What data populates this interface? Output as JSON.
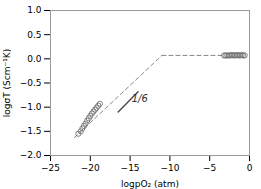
{
  "chart_data": {
    "type": "scatter",
    "xlabel": "logpO₂ (atm)",
    "ylabel": "logσT (Scm⁻¹K)",
    "xlim": [
      -25,
      0
    ],
    "ylim": [
      -2.0,
      1.0
    ],
    "xticks": [
      -25,
      -20,
      -15,
      -10,
      -5,
      0
    ],
    "yticks": [
      {
        "value": -2.0,
        "label": "−2.0"
      },
      {
        "value": -1.5,
        "label": "−1.5"
      },
      {
        "value": -1.0,
        "label": "−1.0"
      },
      {
        "value": -0.5,
        "label": "−0.5"
      },
      {
        "value": 0.0,
        "label": "0.0"
      },
      {
        "value": 0.5,
        "label": "0.5"
      },
      {
        "value": 1.0,
        "label": "1.0"
      }
    ],
    "series": [
      {
        "type": "line",
        "line_style": "dashed",
        "color": "#888888",
        "x": [
          -22.0,
          -11.0
        ],
        "values": [
          -1.63,
          0.07
        ]
      },
      {
        "type": "line",
        "line_style": "dashed",
        "color": "#888888",
        "x": [
          -11.0,
          -3.2
        ],
        "values": [
          0.07,
          0.07
        ]
      },
      {
        "type": "scatter",
        "marker": "circle",
        "color": "#666666",
        "x": [
          -21.5,
          -21.2,
          -21.0,
          -20.8,
          -20.6,
          -20.4,
          -20.2,
          -20.0,
          -19.8,
          -19.6,
          -19.4,
          -19.2,
          -19.0,
          -18.8
        ],
        "values": [
          -1.55,
          -1.5,
          -1.44,
          -1.39,
          -1.34,
          -1.28,
          -1.23,
          -1.18,
          -1.13,
          -1.09,
          -1.05,
          -1.01,
          -0.97,
          -0.93
        ]
      },
      {
        "type": "scatter",
        "marker": "circle",
        "color": "#666666",
        "x": [
          -3.2,
          -3.0,
          -2.8,
          -2.6,
          -2.4,
          -2.2,
          -2.0,
          -1.8,
          -1.6,
          -1.4,
          -1.2,
          -1.0,
          -0.8,
          -0.6
        ],
        "values": [
          0.07,
          0.07,
          0.07,
          0.07,
          0.07,
          0.08,
          0.07,
          0.07,
          0.08,
          0.07,
          0.07,
          0.08,
          0.07,
          0.07
        ]
      },
      {
        "type": "line",
        "line_style": "solid",
        "color": "#444444",
        "x": [
          -16.5,
          -14.0
        ],
        "values": [
          -1.1,
          -0.68
        ]
      }
    ],
    "annotations": [
      {
        "text": "1/6",
        "x": -14.8,
        "y": -0.82
      }
    ]
  }
}
